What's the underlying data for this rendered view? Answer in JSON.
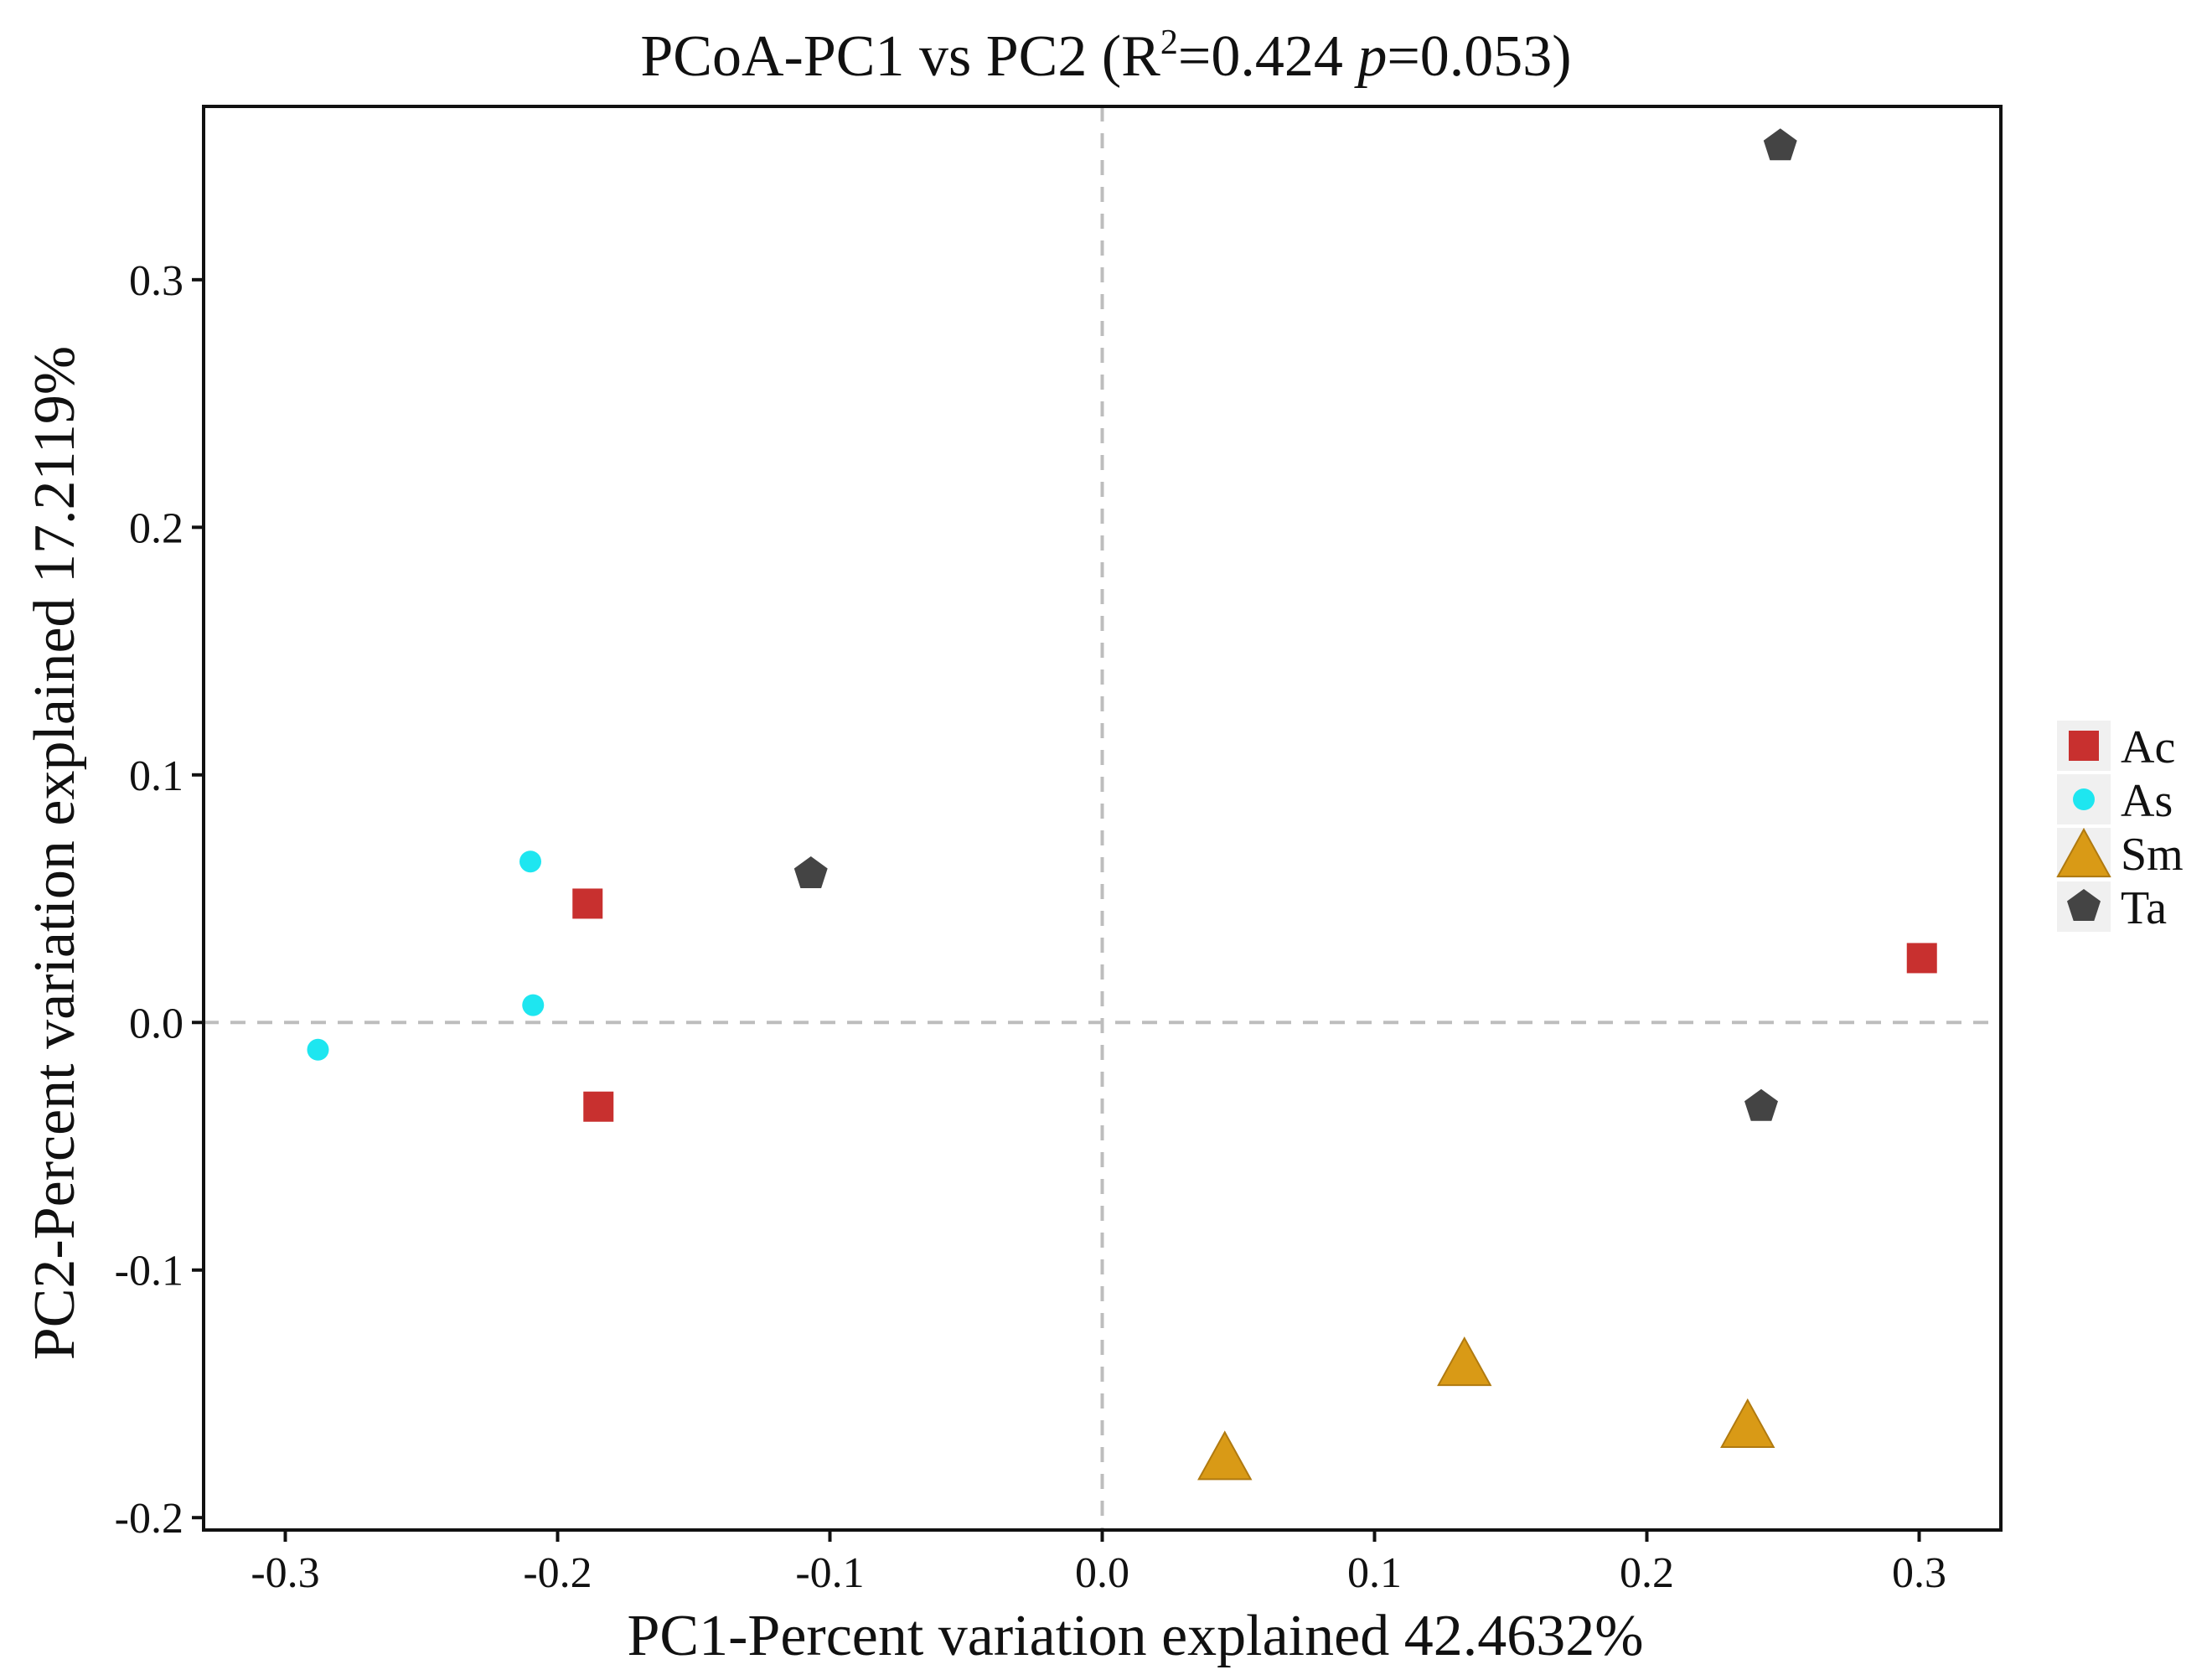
{
  "chart_data": {
    "type": "scatter",
    "title": {
      "prefix": "PCoA-PC1 vs PC2 (R",
      "superscript": "2",
      "mid": "=0.424 ",
      "italic": "p",
      "suffix": "=0.053)"
    },
    "xlabel": "PC1-Percent variation explained 42.4632%",
    "ylabel": "PC2-Percent variation explained 17.2119%",
    "xlim": [
      -0.33,
      0.33
    ],
    "ylim": [
      -0.205,
      0.37
    ],
    "x_ticks": [
      -0.3,
      -0.2,
      -0.1,
      0.0,
      0.1,
      0.2,
      0.3
    ],
    "x_tick_labels": [
      "-0.3",
      "-0.2",
      "-0.1",
      "0.0",
      "0.1",
      "0.2",
      "0.3"
    ],
    "y_ticks": [
      -0.2,
      -0.1,
      0.0,
      0.1,
      0.2,
      0.3
    ],
    "y_tick_labels": [
      "-0.2",
      "-0.1",
      "0.0",
      "0.1",
      "0.2",
      "0.3"
    ],
    "reference_lines": {
      "x": 0.0,
      "y": 0.0,
      "style": "dashed"
    },
    "grid": false,
    "legend_position": "right",
    "series": [
      {
        "name": "Ac",
        "marker": "square",
        "color": "#c8302f",
        "points": [
          [
            -0.189,
            0.048
          ],
          [
            -0.185,
            -0.034
          ],
          [
            0.301,
            0.026
          ]
        ]
      },
      {
        "name": "As",
        "marker": "circle",
        "color": "#1ee6f0",
        "points": [
          [
            -0.21,
            0.065
          ],
          [
            -0.209,
            0.007
          ],
          [
            -0.288,
            -0.011
          ]
        ]
      },
      {
        "name": "Sm",
        "marker": "triangle",
        "color": "#d99a16",
        "points": [
          [
            0.045,
            -0.175
          ],
          [
            0.133,
            -0.137
          ],
          [
            0.237,
            -0.162
          ]
        ]
      },
      {
        "name": "Ta",
        "marker": "pentagon",
        "color": "#444444",
        "points": [
          [
            0.249,
            0.354
          ],
          [
            -0.107,
            0.06
          ],
          [
            0.242,
            -0.034
          ]
        ]
      }
    ]
  }
}
